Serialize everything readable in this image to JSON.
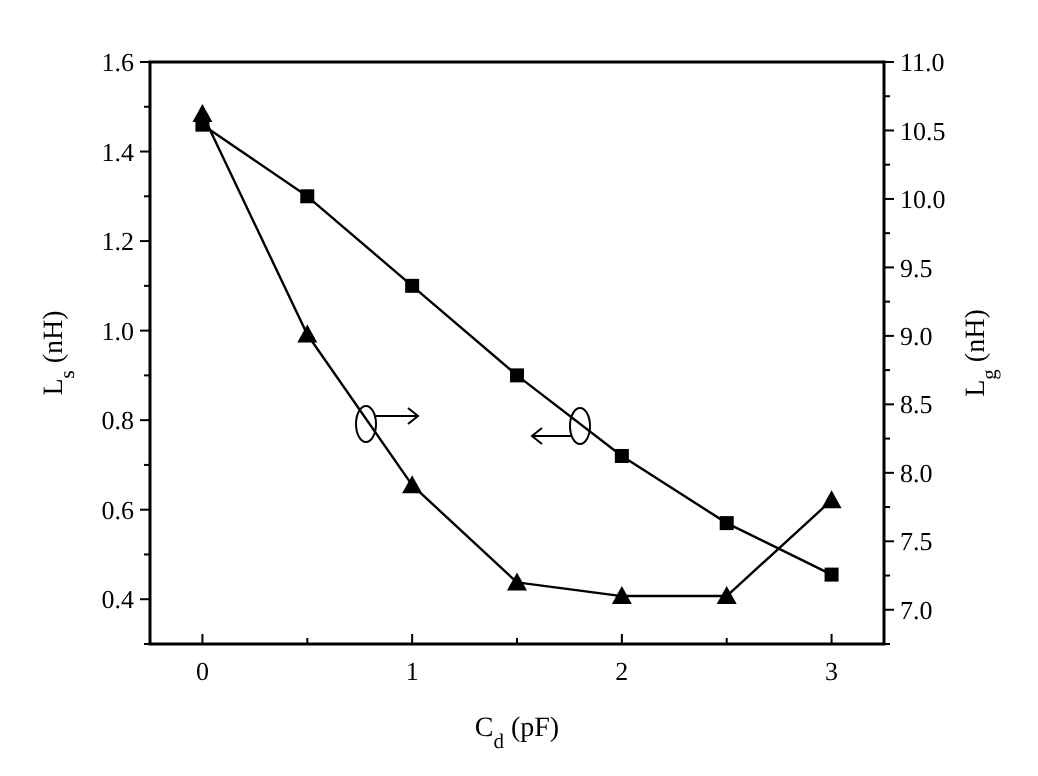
{
  "chart_data": {
    "type": "line",
    "xlabel": "C$_{d}$ (pF)",
    "ylabel": "L$_{s}$ (nH)",
    "y2label": "L$_{g}$ (nH)",
    "xlim": [
      -0.25,
      3.25
    ],
    "xticks": [
      0,
      {
        "value": 0.5,
        "label": null
      },
      1,
      {
        "value": 1.5,
        "label": null
      },
      2,
      {
        "value": 2.5,
        "label": null
      },
      3
    ],
    "ylim": [
      0.3,
      1.6
    ],
    "yticks": [
      {
        "value": 0.3,
        "label": null
      },
      0.4,
      {
        "value": 0.5,
        "label": null
      },
      0.6,
      {
        "value": 0.7,
        "label": null
      },
      0.8,
      {
        "value": 0.9,
        "label": null
      },
      {
        "value": 1,
        "label": "1.0"
      },
      {
        "value": 1.1,
        "label": null
      },
      1.2,
      {
        "value": 1.3,
        "label": null
      },
      1.4,
      {
        "value": 1.5,
        "label": null
      },
      1.6
    ],
    "y2lim": [
      6.75,
      11.0
    ],
    "y2ticks": [
      {
        "value": 6.75,
        "label": null
      },
      {
        "value": 7,
        "label": "7.0"
      },
      {
        "value": 7.25,
        "label": null
      },
      7.5,
      {
        "value": 7.75,
        "label": null
      },
      {
        "value": 8,
        "label": "8.0"
      },
      {
        "value": 8.25,
        "label": null
      },
      8.5,
      {
        "value": 8.75,
        "label": null
      },
      {
        "value": 9,
        "label": "9.0"
      },
      {
        "value": 9.25,
        "label": null
      },
      9.5,
      {
        "value": 9.75,
        "label": null
      },
      {
        "value": 10,
        "label": "10.0"
      },
      {
        "value": 10.25,
        "label": null
      },
      10.5,
      {
        "value": 10.75,
        "label": null
      },
      {
        "value": 11,
        "label": "11.0"
      }
    ],
    "x": [
      0,
      0.5,
      1,
      1.5,
      2,
      2.5,
      3
    ],
    "series": [
      {
        "color": "#000000",
        "marker": "square",
        "values": [
          1.46,
          1.3,
          1.1,
          0.9,
          0.72,
          0.57,
          0.455
        ]
      },
      {
        "color": "#000000",
        "marker": "triangle",
        "axis": "y2",
        "values": [
          10.62,
          9.01,
          7.91,
          7.2,
          7.1,
          7.1,
          7.8
        ]
      }
    ],
    "grid": false
  }
}
